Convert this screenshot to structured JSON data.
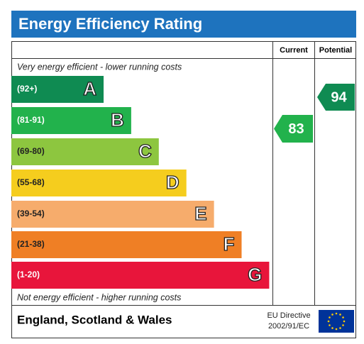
{
  "header": {
    "title": "Energy Efficiency Rating"
  },
  "columns": {
    "current": "Current",
    "potential": "Potential"
  },
  "top_note": "Very energy efficient - lower running costs",
  "bottom_note": "Not energy efficient - higher running costs",
  "bands": [
    {
      "range": "(92+)",
      "letter": "A",
      "color": "#0f8b52"
    },
    {
      "range": "(81-91)",
      "letter": "B",
      "color": "#22b24c"
    },
    {
      "range": "(69-80)",
      "letter": "C",
      "color": "#8dc63f"
    },
    {
      "range": "(55-68)",
      "letter": "D",
      "color": "#f5cd1e"
    },
    {
      "range": "(39-54)",
      "letter": "E",
      "color": "#f6ac6c"
    },
    {
      "range": "(21-38)",
      "letter": "F",
      "color": "#ef7f25"
    },
    {
      "range": "(1-20)",
      "letter": "G",
      "color": "#e8153b"
    }
  ],
  "current": {
    "value": 83,
    "color": "#22b24c"
  },
  "potential": {
    "value": 94,
    "color": "#0f8b52"
  },
  "footer": {
    "region": "England, Scotland & Wales",
    "directive": [
      "EU Directive",
      "2002/91/EC"
    ]
  }
}
